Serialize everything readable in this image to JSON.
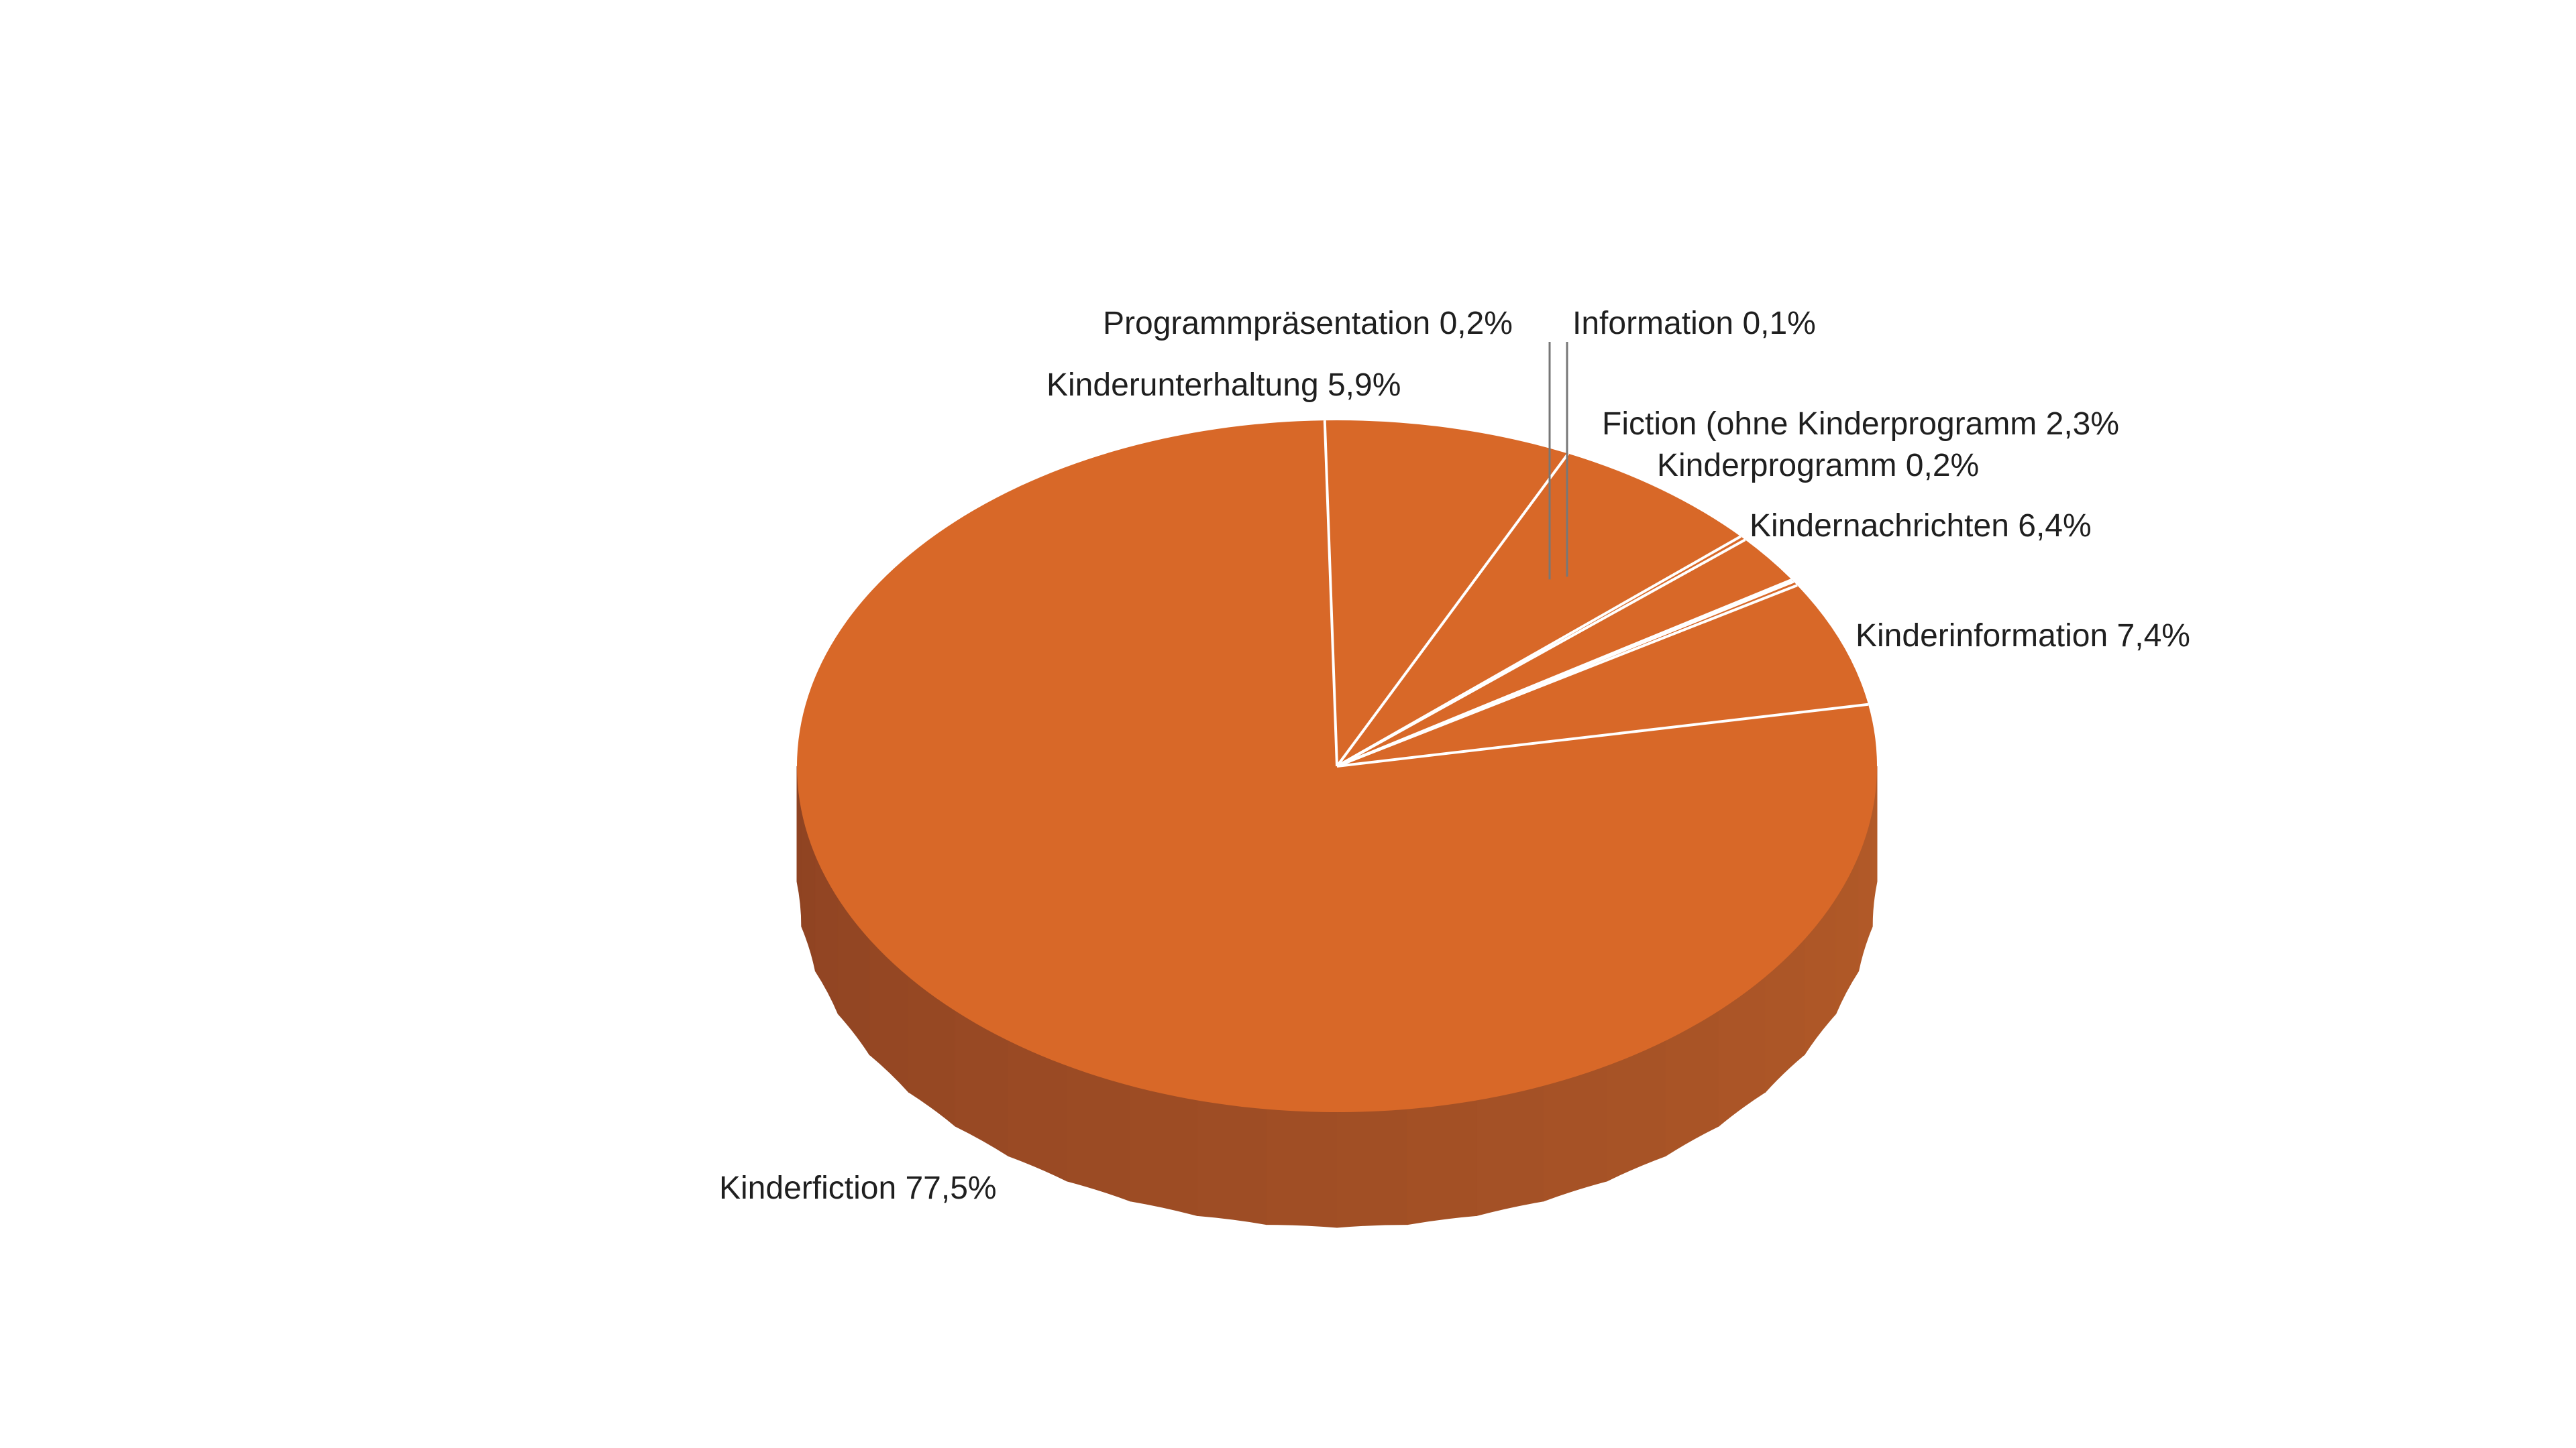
{
  "chart_data": {
    "type": "pie",
    "style": "3d",
    "title": "",
    "colors": {
      "top": "#D86828",
      "side_light": "#B35A28",
      "side_dark": "#8E4322",
      "separator": "#ffffff",
      "label_text": "#1f1f1f"
    },
    "slices": [
      {
        "label": "Kinderfiction 77,5%",
        "category": "Kinderfiction",
        "value": 77.5
      },
      {
        "label": "Kinderunterhaltung 5,9%",
        "category": "Kinderunterhaltung",
        "value": 5.9
      },
      {
        "label": "Programmpräsentation 0,2%",
        "category": "Programmpräsentation",
        "value": 0.2
      },
      {
        "label": "Information 0,1%",
        "category": "Information",
        "value": 0.1
      },
      {
        "label": "Fiction (ohne Kinderprogramm 2,3%",
        "category": "Fiction (ohne Kinderprogramm",
        "value": 2.3
      },
      {
        "label": "Kinderprogramm 0,2%",
        "category": "Kinderprogramm",
        "value": 0.2
      },
      {
        "label": "Kindernachrichten 6,4%",
        "category": "Kindernachrichten",
        "value": 6.4
      },
      {
        "label": "Kinderinformation 7,4%",
        "category": "Kinderinformation",
        "value": 7.4
      }
    ]
  }
}
